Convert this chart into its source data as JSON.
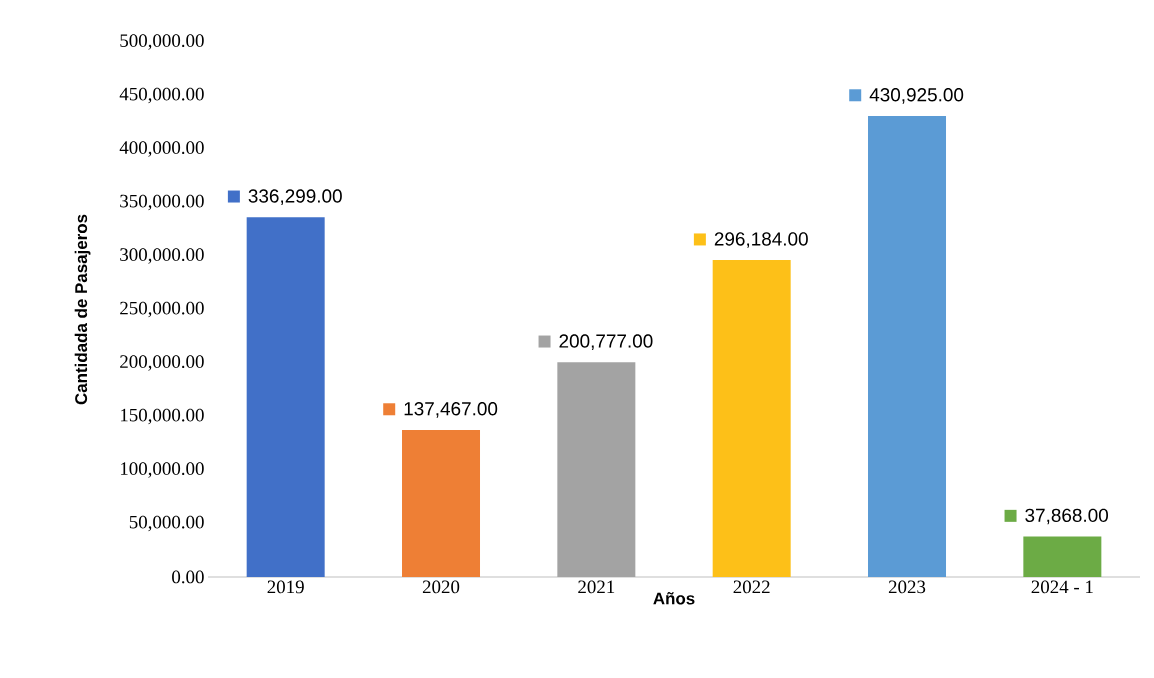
{
  "chart_data": {
    "type": "bar",
    "xlabel": "Años",
    "ylabel": "Cantidada de Pasajeros",
    "categories": [
      "2019",
      "2020",
      "2021",
      "2022",
      "2023",
      "2024 - 1"
    ],
    "values": [
      336299,
      137467,
      200777,
      296184,
      430925,
      37868
    ],
    "colors": [
      "#4170c8",
      "#ee7f35",
      "#a3a3a3",
      "#fdc018",
      "#5b9bd5",
      "#6cab45"
    ],
    "value_labels": [
      "336,299.00",
      "137,467.00",
      "200,777.00",
      "296,184.00",
      "430,925.00",
      "37,868.00"
    ],
    "ylim": [
      0,
      500000
    ],
    "yticks": [
      {
        "value": 0,
        "label": "0.00"
      },
      {
        "value": 50000,
        "label": "50,000.00"
      },
      {
        "value": 100000,
        "label": "100,000.00"
      },
      {
        "value": 150000,
        "label": "150,000.00"
      },
      {
        "value": 200000,
        "label": "200,000.00"
      },
      {
        "value": 250000,
        "label": "250,000.00"
      },
      {
        "value": 300000,
        "label": "300,000.00"
      },
      {
        "value": 350000,
        "label": "350,000.00"
      },
      {
        "value": 400000,
        "label": "400,000.00"
      },
      {
        "value": 450000,
        "label": "450,000.00"
      },
      {
        "value": 500000,
        "label": "500,000.00"
      }
    ]
  }
}
